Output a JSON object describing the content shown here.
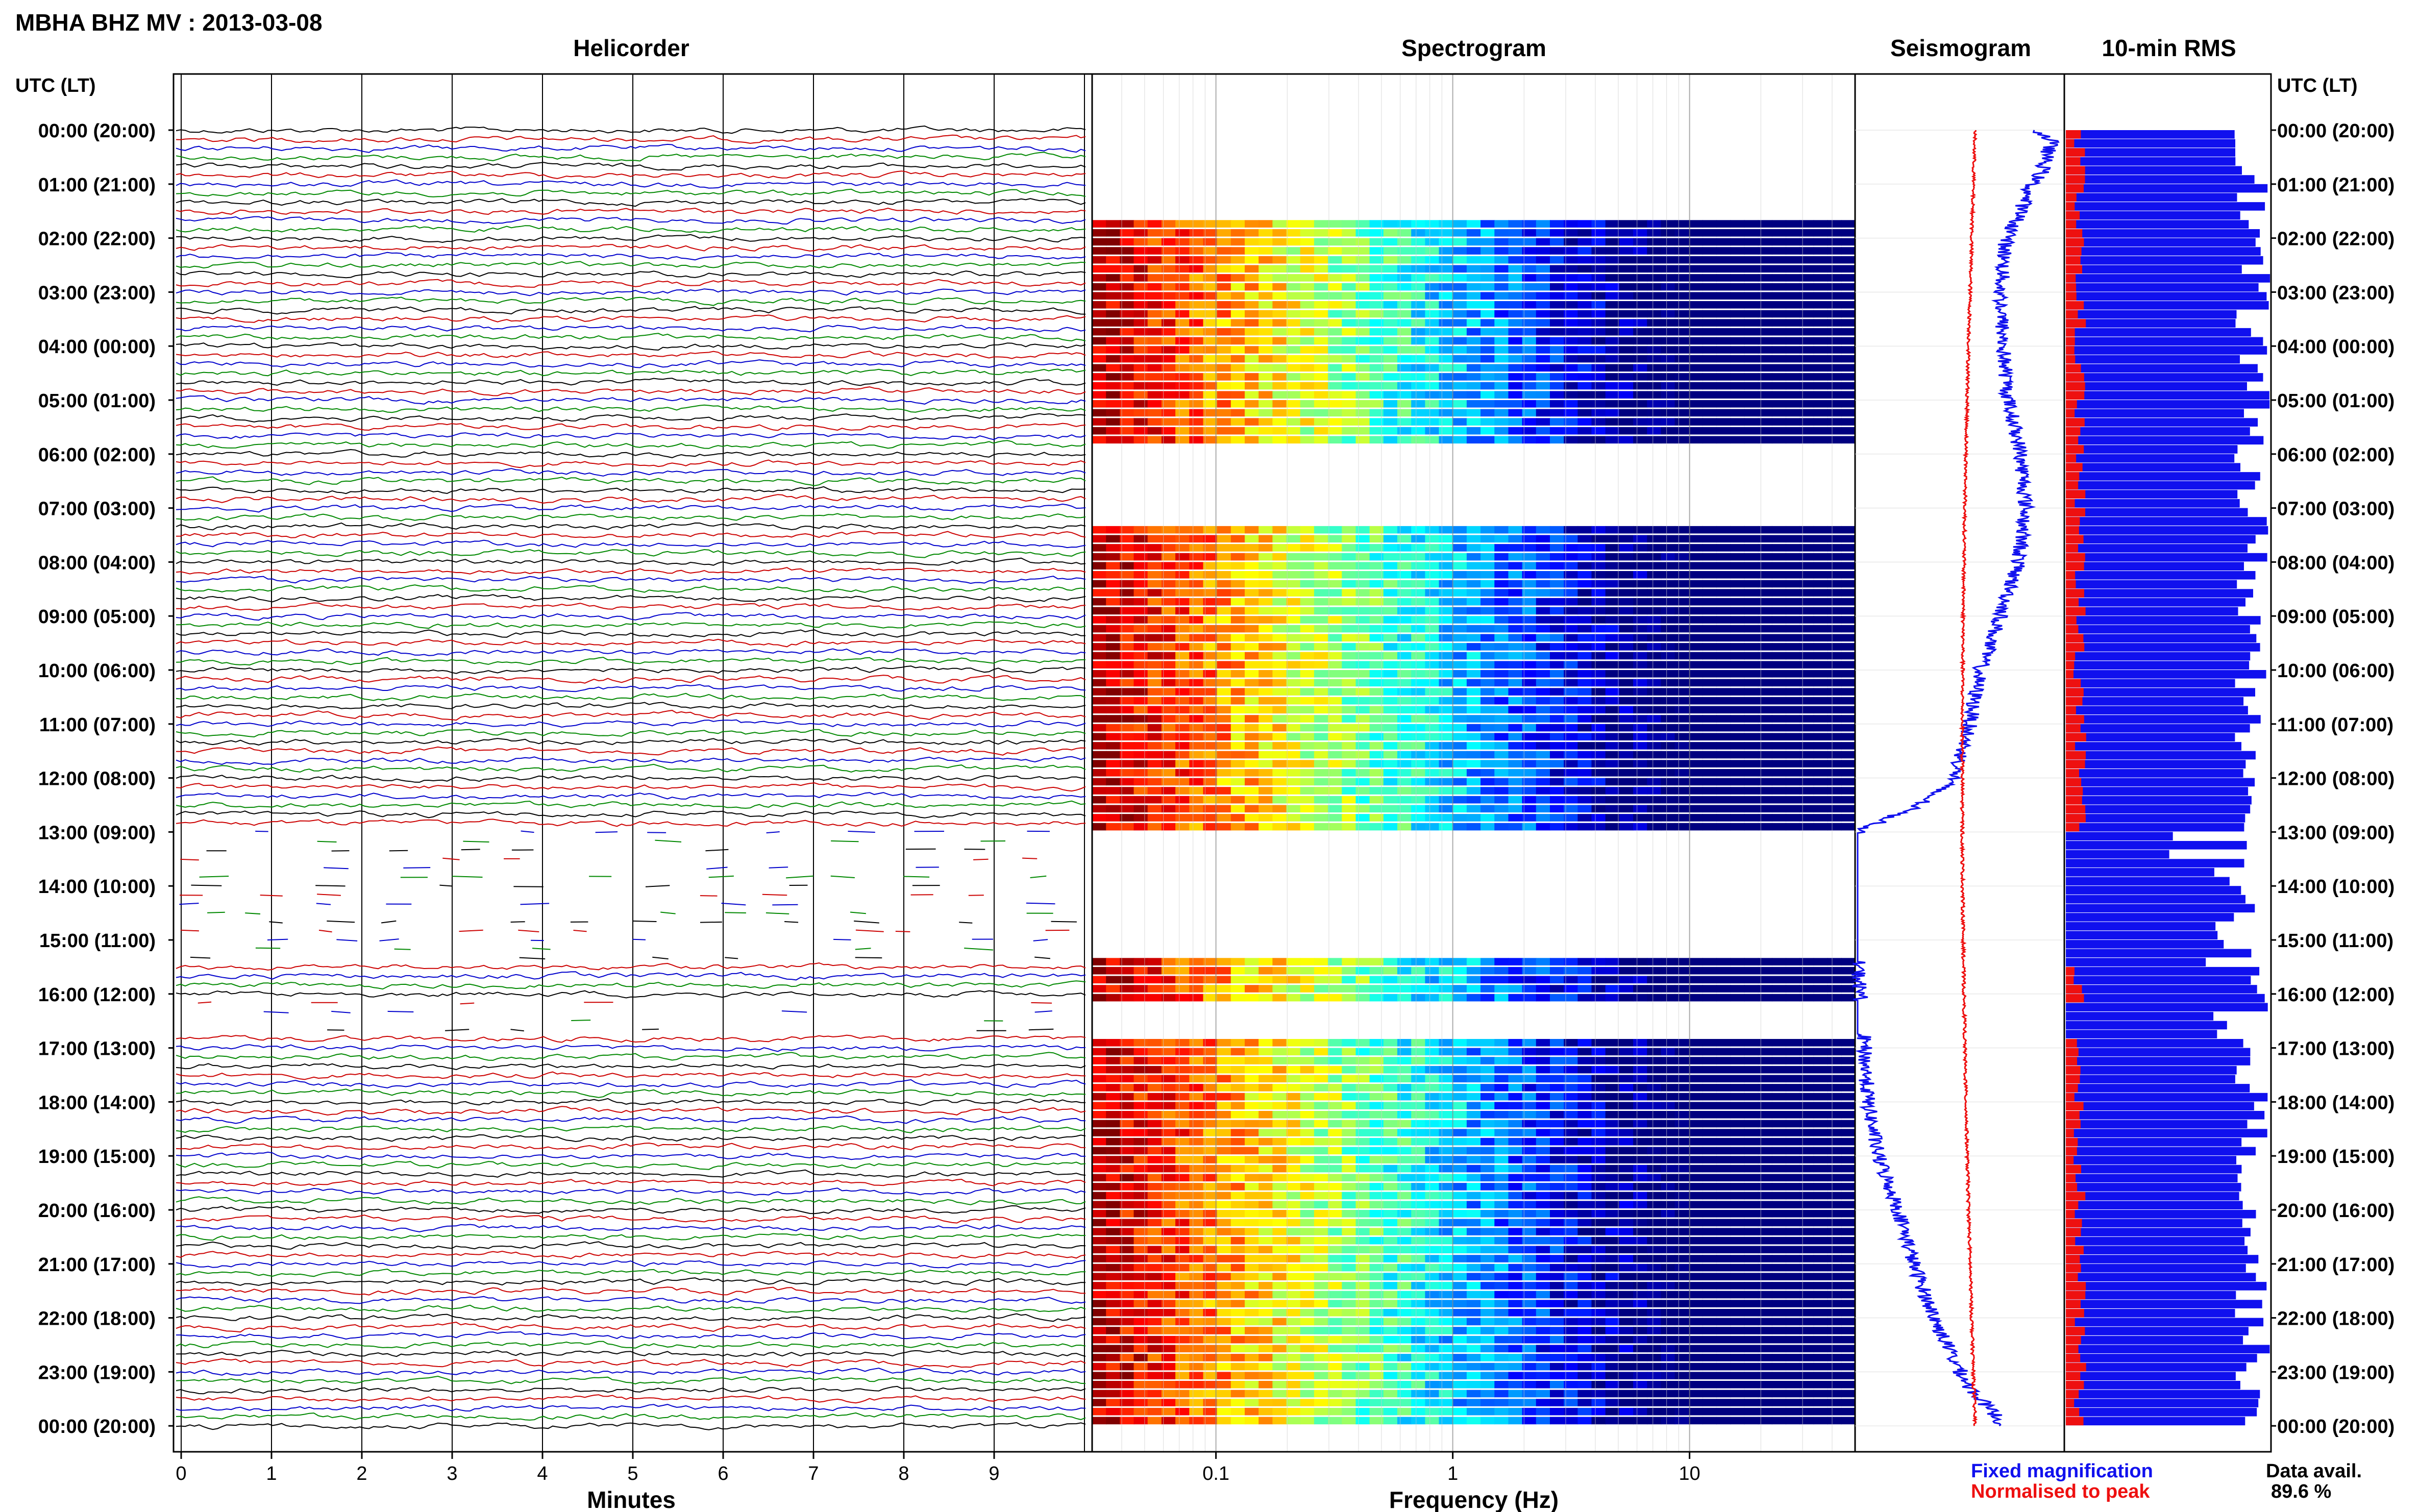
{
  "header": {
    "title": "MBHA BHZ MV : 2013-03-08"
  },
  "panels": {
    "helicorder": "Helicorder",
    "spectrogram": "Spectrogram",
    "seismogram": "Seismogram",
    "rms": "10-min RMS"
  },
  "axis_header_left": "UTC (LT)",
  "axis_header_right": "UTC (LT)",
  "time_labels": [
    "00:00 (20:00)",
    "01:00 (21:00)",
    "02:00 (22:00)",
    "03:00 (23:00)",
    "04:00 (00:00)",
    "05:00 (01:00)",
    "06:00 (02:00)",
    "07:00 (03:00)",
    "08:00 (04:00)",
    "09:00 (05:00)",
    "10:00 (06:00)",
    "11:00 (07:00)",
    "12:00 (08:00)",
    "13:00 (09:00)",
    "14:00 (10:00)",
    "15:00 (11:00)",
    "16:00 (12:00)",
    "17:00 (13:00)",
    "18:00 (14:00)",
    "19:00 (15:00)",
    "20:00 (16:00)",
    "21:00 (17:00)",
    "22:00 (18:00)",
    "23:00 (19:00)",
    "00:00 (20:00)"
  ],
  "helicorder_xaxis": {
    "label": "Minutes",
    "ticks": [
      "0",
      "1",
      "2",
      "3",
      "4",
      "5",
      "6",
      "7",
      "8",
      "9"
    ]
  },
  "spectrogram_xaxis": {
    "label": "Frequency (Hz)",
    "ticks": [
      "0.1",
      "1",
      "10"
    ]
  },
  "legend": {
    "fixed": "Fixed magnification",
    "normalised": "Normalised to peak",
    "fixed_color": "#1010ee",
    "normalised_color": "#ee1010"
  },
  "data_avail": {
    "label": "Data avail.",
    "value": "89.6 %"
  },
  "chart_data": {
    "type": "heatmap",
    "station": "MBHA",
    "channel": "BHZ",
    "network": "MV",
    "date": "2013-03-08",
    "helicorder": {
      "x_unit": "Minutes",
      "xlim": [
        0,
        10
      ],
      "trace_colors": [
        "#000000",
        "#cc0000",
        "#0000cc",
        "#008800"
      ]
    },
    "spectrogram": {
      "x_scale": "log",
      "xlim_hz": [
        0.03,
        50
      ],
      "colormap": "jet"
    },
    "data_gaps_utc_hours": [
      [
        13.0,
        15.4
      ],
      [
        16.1,
        16.75
      ]
    ],
    "spectrogram_gaps_utc_hours": [
      [
        0.0,
        1.6
      ],
      [
        5.9,
        7.3
      ]
    ],
    "data_availability_percent": 89.6
  }
}
